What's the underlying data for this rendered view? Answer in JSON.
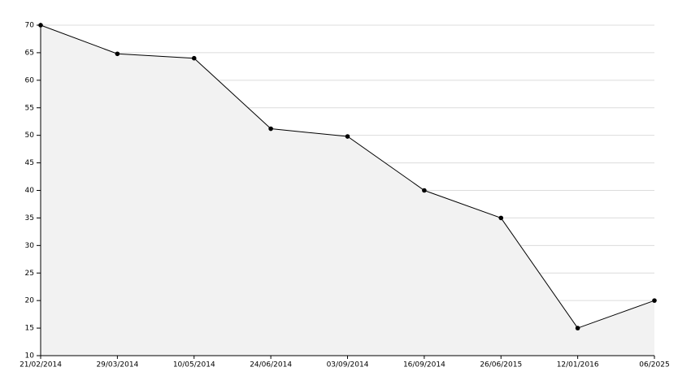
{
  "chart_data": {
    "type": "area",
    "categories": [
      "21/02/2014",
      "29/03/2014",
      "10/05/2014",
      "24/06/2014",
      "03/09/2014",
      "16/09/2014",
      "26/06/2015",
      "12/01/2016",
      "06/2025"
    ],
    "values": [
      70,
      64.8,
      64,
      51.2,
      49.8,
      40,
      35,
      15,
      20
    ],
    "color": "#000000",
    "fill": "#f2f2f2",
    "ylim": [
      10,
      70
    ],
    "yticks": [
      10,
      15,
      20,
      25,
      30,
      35,
      40,
      45,
      50,
      55,
      60,
      65,
      70
    ],
    "grid": true
  }
}
